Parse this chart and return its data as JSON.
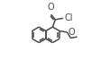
{
  "bg_color": "#ffffff",
  "line_color": "#4a4a4a",
  "line_width": 1.1,
  "figsize": [
    1.22,
    0.77
  ],
  "dpi": 100,
  "xlim": [
    0.0,
    1.0
  ],
  "ylim": [
    0.0,
    1.0
  ]
}
